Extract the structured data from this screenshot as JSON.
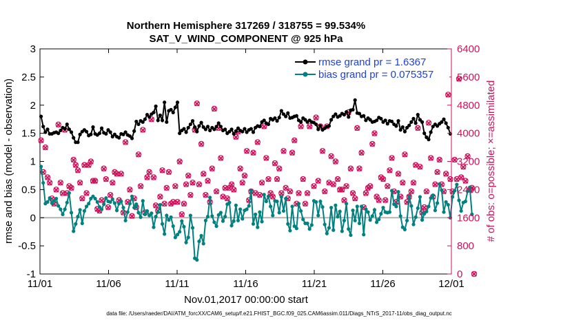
{
  "chart_data": {
    "type": "line",
    "title_line1": "Northern Hemisphere 317269 / 318755 = 99.534%",
    "title_line2": "SAT_V_WIND_COMPONENT @ 925 hPa",
    "xlabel": "Nov.01,2017 00:00:00 start",
    "ylabel_left": "rmse and bias (model - observation)",
    "ylabel_right": "# of obs: o=possible; ×=assimilated",
    "footnote": "data file: /Users/raeder/DAI/ATM_forcXX/CAM6_setup/f.e21.FHIST_BGC.f09_025.CAM6assim.011/Diags_NTrS_2017-11/obs_diag_output.nc",
    "xlim": [
      0,
      30
    ],
    "ylim_left": [
      -1,
      3
    ],
    "ylim_right": [
      0,
      6400
    ],
    "x_ticks": [
      0,
      5,
      10,
      15,
      20,
      25,
      30
    ],
    "x_tick_labels": [
      "11/01",
      "11/06",
      "11/11",
      "11/16",
      "11/21",
      "11/26",
      "12/01"
    ],
    "y_left_ticks": [
      "-1",
      "-0.5",
      "0",
      "0.5",
      "1",
      "1.5",
      "2",
      "2.5",
      "3"
    ],
    "y_right_ticks": [
      "0",
      "800",
      "1600",
      "2400",
      "3200",
      "4000",
      "4800",
      "5600",
      "6400"
    ],
    "legend": [
      {
        "label": "rmse grand pr = 1.6367",
        "color": "#000000"
      },
      {
        "label": "bias grand pr = 0.075357",
        "color": "#00807f"
      }
    ],
    "series": [
      {
        "name": "rmse",
        "color": "#000000",
        "values": [
          1.8,
          1.62,
          1.52,
          1.57,
          1.49,
          1.49,
          1.51,
          1.52,
          1.5,
          1.55,
          1.6,
          1.58,
          1.66,
          1.57,
          1.52,
          1.42,
          1.34,
          1.34,
          1.48,
          1.53,
          1.56,
          1.53,
          1.46,
          1.48,
          1.61,
          1.49,
          1.47,
          1.5,
          1.59,
          1.51,
          1.49,
          1.56,
          1.52,
          1.44,
          1.48,
          1.44,
          1.42,
          1.49,
          1.48,
          1.52,
          1.47,
          1.45,
          1.41,
          1.54,
          1.71,
          1.66,
          1.72,
          1.7,
          1.75,
          1.83,
          1.79,
          1.84,
          1.87,
          1.98,
          1.73,
          1.82,
          1.73,
          2.05,
          1.7,
          1.9,
          1.92,
          1.87,
          1.96,
          2.05,
          1.5,
          1.55,
          1.58,
          1.52,
          1.6,
          1.66,
          1.72,
          1.61,
          1.53,
          1.63,
          1.69,
          1.61,
          1.57,
          1.62,
          1.55,
          1.6,
          1.57,
          1.62,
          1.68,
          1.62,
          1.55,
          1.57,
          1.5,
          1.53,
          1.57,
          1.49,
          1.54,
          1.59,
          1.55,
          1.53,
          1.58,
          1.52,
          1.56,
          1.58,
          1.52,
          1.6,
          1.63,
          1.62,
          1.7,
          1.73,
          1.68,
          1.66,
          1.76,
          1.74,
          1.77,
          1.72,
          1.78,
          1.9,
          1.84,
          1.8,
          1.86,
          1.77,
          1.78,
          1.8,
          1.81,
          1.73,
          1.7,
          1.77,
          1.74,
          1.7,
          1.73,
          1.7,
          1.69,
          1.66,
          1.57,
          1.63,
          1.56,
          1.59,
          1.62,
          1.63,
          1.74,
          1.8,
          1.84,
          1.79,
          1.81,
          1.85,
          1.83,
          1.88,
          1.79,
          1.91,
          1.92,
          2.09,
          1.86,
          1.85,
          1.8,
          1.81,
          1.73,
          1.77,
          1.74,
          1.7,
          1.71,
          1.73,
          1.78,
          1.76,
          1.7,
          1.73,
          1.67,
          1.72,
          1.71,
          1.66,
          1.63,
          1.72,
          1.56,
          1.61,
          1.53,
          1.6,
          1.64,
          1.7,
          1.76,
          1.68,
          1.83,
          1.74,
          1.7,
          1.5,
          1.43,
          1.39,
          1.52,
          1.62,
          1.66,
          1.63,
          1.67,
          1.7,
          1.75,
          1.68,
          1.6,
          1.49
        ]
      },
      {
        "name": "bias",
        "color": "#00807f",
        "values": [
          0.91,
          0.62,
          0.25,
          0.28,
          0.35,
          0.26,
          0.3,
          0.34,
          0.21,
          0.15,
          0.06,
          0.15,
          0.27,
          0.44,
          0.09,
          -0.24,
          -0.11,
          0.02,
          0.14,
          -0.1,
          0.12,
          0.2,
          0.25,
          0.34,
          0.38,
          0.34,
          0.28,
          0.19,
          0.15,
          0.24,
          0.35,
          0.29,
          0.28,
          0.33,
          0.26,
          0.13,
          0.25,
          0.29,
          0.18,
          -0.05,
          0.1,
          0.25,
          0.38,
          0.18,
          0.24,
          0.09,
          0.01,
          0.3,
          0.06,
          0.12,
          0.04,
          0.08,
          -0.17,
          0.02,
          0.1,
          0.23,
          -0.11,
          -0.29,
          0.04,
          -0.04,
          0.01,
          -0.15,
          -0.35,
          -0.3,
          -0.25,
          -0.06,
          -0.16,
          -0.44,
          -0.35,
          0.04,
          -0.18,
          -0.72,
          -0.75,
          -0.42,
          -0.32,
          -0.46,
          -0.05,
          0.02,
          0.36,
          0.03,
          -0.08,
          -0.15,
          0.05,
          0.09,
          -0.06,
          0.02,
          0.24,
          0.27,
          -0.14,
          -0.06,
          0.22,
          -0.05,
          0.15,
          -0.02,
          0.13,
          0.15,
          0.21,
          0.48,
          -0.11,
          0.06,
          -0.17,
          0.1,
          -0.07,
          0.41,
          0.29,
          0.38,
          0.2,
          0.04,
          0.3,
          0.29,
          0.09,
          0.37,
          0.12,
          0.34,
          -0.11,
          -0.23,
          0.2,
          -0.15,
          -0.19,
          0.25,
          0.12,
          -0.03,
          -0.1,
          -0.1,
          -0.2,
          -0.13,
          0.3,
          0.28,
          0.04,
          0.29,
          0.19,
          -0.12,
          -0.28,
          -0.18,
          0.18,
          -0.22,
          0.22,
          0.02,
          0.11,
          -0.24,
          -0.05,
          0.25,
          -0.2,
          -0.31,
          0.13,
          -0.05,
          0.2,
          -0.1,
          0.2,
          -0.3,
          0.15,
          0.1,
          -0.04,
          0.03,
          0.14,
          -0.08,
          -0.03,
          0.07,
          0.18,
          0.1,
          0.09,
          0.1,
          0.48,
          0.24,
          0.2,
          0.46,
          0.03,
          -0.17,
          -0.21,
          -0.05,
          0.38,
          0.21,
          -0.12,
          0.01,
          0.17,
          0.37,
          -0.04,
          0.07,
          0.11,
          0.2,
          0.35,
          0.4,
          0.13,
          0.26,
          0.6,
          0.49,
          0.1,
          0.28,
          0.23,
          0.0,
          0.37,
          0.48,
          0.59,
          0.31,
          0.12,
          0.27,
          0.29,
          0.47,
          0.54,
          0.06
        ]
      },
      {
        "name": "possible",
        "color": "#d0105a",
        "values": [
          3800,
          2900,
          3600,
          2750,
          2600,
          2150,
          2000,
          2400,
          4250,
          2600,
          2300,
          4100,
          2300,
          2500,
          2450,
          3250,
          3100,
          2950,
          2600,
          2150,
          3100,
          2300,
          3100,
          3200,
          2650,
          2650,
          1850,
          1800,
          2100,
          3000,
          2700,
          1900,
          2250,
          2600,
          2900,
          2850,
          2100,
          2850,
          1750,
          3750,
          2050,
          2400,
          1650,
          2150,
          1900,
          3400,
          2500,
          4100,
          1750,
          2750,
          2900,
          4400,
          2750,
          1950,
          1800,
          2200,
          2950,
          2000,
          2450,
          2900,
          2000,
          2050,
          2500,
          2050,
          3200,
          1700,
          2000,
          2550,
          2800,
          2250,
          2600,
          4100,
          4850,
          2550,
          3700,
          2850,
          2250,
          2650,
          2050,
          3000,
          4700,
          2350,
          4150,
          3300,
          2200,
          2450,
          2150,
          2450,
          2550,
          2400,
          3900,
          4050,
          3000,
          2600,
          2800,
          3500,
          2100,
          2350,
          3450,
          2300,
          3750,
          2250,
          2600,
          4200,
          3300,
          2700,
          2300,
          2200,
          3150,
          2700,
          3000,
          2300,
          3500,
          2450,
          2150,
          2350,
          3450,
          3800,
          2000,
          2300,
          4200,
          2700,
          2000,
          2300,
          4200,
          5550,
          2500,
          4450,
          2650,
          4200,
          3500,
          2350,
          4200,
          2600,
          3350,
          2550,
          3200,
          2700,
          2400,
          2400,
          2100,
          2500,
          4600,
          3000,
          2300,
          2150,
          4150,
          3000,
          3450,
          1900,
          2300,
          2450,
          2500,
          3700,
          4000,
          2200,
          2100,
          2750,
          2700,
          2100,
          2500,
          2950,
          3300,
          2350,
          2050,
          2850,
          2200,
          2600,
          3400,
          2050,
          2200,
          2350,
          2600,
          3100,
          4150,
          3050,
          1750,
          1900,
          2350,
          4300,
          3300,
          2200,
          2550,
          2900,
          3250,
          2550,
          2350,
          2850,
          5100,
          2700,
          2350,
          3250,
          2700,
          5550,
          2750,
          3050,
          2650,
          3350,
          2400,
          2450,
          0
        ]
      },
      {
        "name": "assimilated",
        "color": "#d0105a",
        "values": [
          3790,
          2890,
          3590,
          2740,
          2590,
          2140,
          1990,
          2390,
          4240,
          2590,
          2290,
          4090,
          2290,
          2490,
          2440,
          3240,
          3090,
          2940,
          2590,
          2140,
          3090,
          2290,
          3090,
          3190,
          2640,
          2640,
          1840,
          1790,
          2090,
          2990,
          2690,
          1890,
          2240,
          2590,
          2890,
          2840,
          2090,
          2840,
          1740,
          3740,
          2040,
          2390,
          1640,
          2140,
          1890,
          3390,
          2490,
          4090,
          1740,
          2740,
          2890,
          4390,
          2740,
          1940,
          1790,
          2190,
          2940,
          1990,
          2440,
          2890,
          1990,
          2040,
          2490,
          2040,
          3190,
          1690,
          1990,
          2540,
          2790,
          2240,
          2590,
          4090,
          4840,
          2540,
          3690,
          2840,
          2240,
          2640,
          2040,
          2990,
          4690,
          2340,
          4140,
          3290,
          2190,
          2440,
          2140,
          2440,
          2540,
          2390,
          3890,
          4040,
          2990,
          2590,
          2790,
          3490,
          2090,
          2340,
          3440,
          2290,
          3740,
          2240,
          2590,
          4190,
          3290,
          2690,
          2290,
          2190,
          3140,
          2690,
          2990,
          2290,
          3490,
          2440,
          2140,
          2340,
          3440,
          3790,
          1990,
          2290,
          4190,
          2690,
          1990,
          2290,
          4190,
          5540,
          2490,
          4440,
          2640,
          4190,
          3490,
          2340,
          4190,
          2590,
          3340,
          2540,
          3190,
          2690,
          2390,
          2390,
          2090,
          2490,
          4590,
          2990,
          2290,
          2140,
          4140,
          2990,
          3440,
          1890,
          2290,
          2440,
          2490,
          3690,
          3990,
          2190,
          2090,
          2740,
          2690,
          2090,
          2490,
          2940,
          3290,
          2340,
          2040,
          2840,
          2190,
          2590,
          3390,
          2040,
          2190,
          2340,
          2590,
          3090,
          4140,
          3040,
          1740,
          1890,
          2340,
          4290,
          3290,
          2190,
          2540,
          2890,
          3240,
          2540,
          2340,
          2840,
          5090,
          2690,
          2340,
          3240,
          2690,
          5540,
          2740,
          3040,
          2640,
          3340,
          2390,
          2440,
          0
        ]
      }
    ]
  }
}
